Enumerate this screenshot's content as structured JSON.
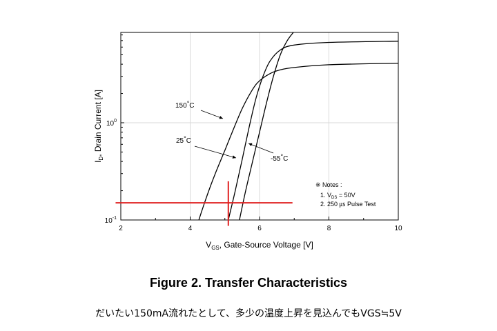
{
  "chart_data": {
    "type": "line",
    "title": "Figure 2. Transfer Characteristics",
    "xlabel": "V_GS, Gate-Source Voltage [V]",
    "ylabel": "I_D, Drain Current [A]",
    "x_scale": "linear",
    "y_scale": "log",
    "xlim": [
      2,
      10
    ],
    "ylim": [
      0.1,
      10
    ],
    "x_ticks": [
      2,
      4,
      6,
      8,
      10
    ],
    "x_tick_labels": [
      "2",
      "4",
      "6",
      "8",
      "10"
    ],
    "y_ticks": [
      0.1,
      1
    ],
    "y_tick_labels": [
      {
        "base": "10",
        "exp": "-1"
      },
      {
        "base": "10",
        "exp": "0"
      }
    ],
    "grid": true,
    "series": [
      {
        "name": "150°C",
        "label": "150",
        "unit": "°C",
        "x": [
          4.25,
          4.4,
          4.6,
          4.8,
          5.0,
          5.2,
          5.5,
          5.8,
          6.0,
          6.3,
          6.6,
          7.0,
          8.0,
          10.0
        ],
        "y": [
          0.1,
          0.145,
          0.23,
          0.35,
          0.52,
          0.78,
          1.4,
          2.2,
          2.7,
          3.2,
          3.5,
          3.7,
          3.95,
          4.1
        ]
      },
      {
        "name": "25°C",
        "label": "25",
        "unit": "°C",
        "x": [
          5.1,
          5.3,
          5.5,
          5.7,
          5.9,
          6.1,
          6.3,
          6.6,
          7.0,
          8.0,
          10.0
        ],
        "y": [
          0.1,
          0.2,
          0.42,
          0.9,
          1.8,
          3.0,
          4.3,
          5.6,
          6.3,
          6.7,
          6.9
        ]
      },
      {
        "name": "-55°C",
        "label": "-55",
        "unit": "°C",
        "x": [
          5.42,
          5.6,
          5.8,
          6.0,
          6.2,
          6.4,
          6.6,
          6.8,
          7.0,
          7.15
        ],
        "y": [
          0.1,
          0.2,
          0.4,
          0.8,
          1.6,
          3.0,
          5.0,
          7.0,
          8.7,
          9.8
        ]
      }
    ],
    "notes": {
      "title": "※ Notes :",
      "line1_prefix": "1. V",
      "line1_sub": "DS",
      "line1_suffix": " = 50V",
      "line2": "2. 250 ㎲ Pulse Test"
    },
    "annotations_red": {
      "horizontal_y": 0.15,
      "horizontal_x_range": [
        1.85,
        6.95
      ],
      "vertical_x": 5.1,
      "vertical_y_range": [
        0.087,
        0.25
      ],
      "color": "#e02020"
    }
  },
  "caption": {
    "title": "Figure 2. Transfer Characteristics",
    "remark": "だいたい150mA流れたとして、多少の温度上昇を見込んでもVGS≒5V"
  }
}
